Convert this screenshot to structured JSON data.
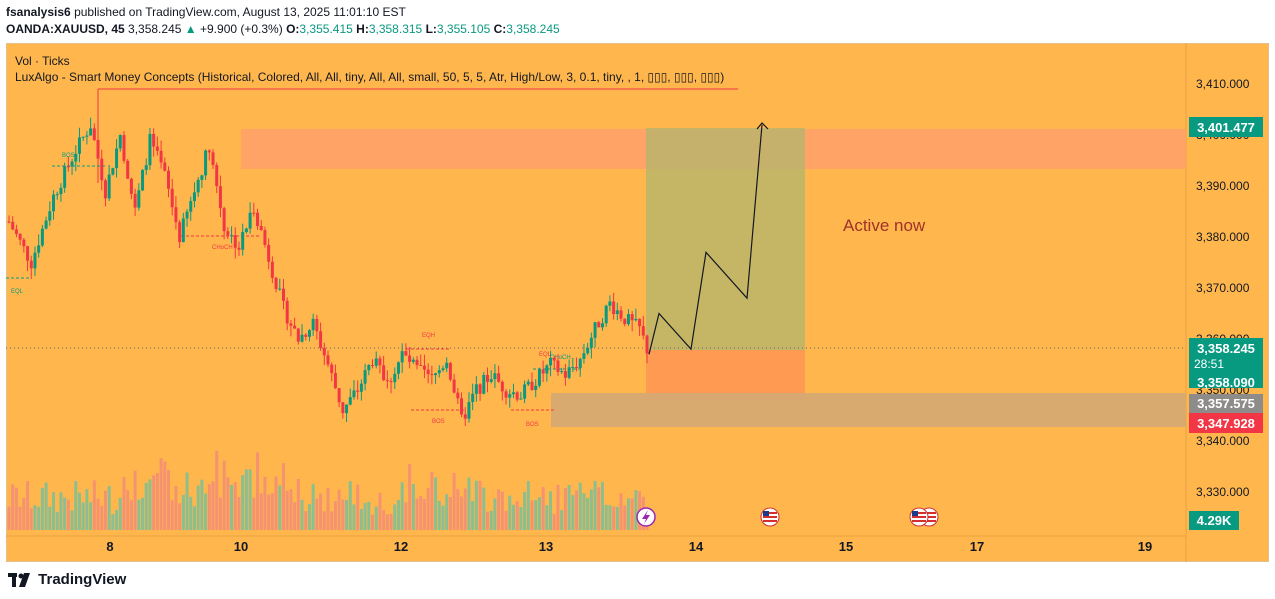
{
  "header": {
    "publisher": "fsanalysis6",
    "published_text": "published on TradingView.com, August 13, 2025 11:01:10 EST"
  },
  "symbol_bar": {
    "symbol": "OANDA:XAUUSD, 45",
    "last": "3,358.245",
    "change": "+9.900 (+0.3%)",
    "o_label": "O:",
    "o": "3,355.415",
    "h_label": "H:",
    "h": "3,358.315",
    "l_label": "L:",
    "l": "3,355.105",
    "c_label": "C:",
    "c": "3,358.245"
  },
  "indicators": {
    "vol": "Vol · Ticks",
    "luxalgo": "LuxAlgo - Smart Money Concepts (Historical, Colored, All, All, tiny, All, All, small, 50, 5, 5, Atr, High/Low, 3, 0.1, tiny, , 1, ▯▯▯, ▯▯▯, ▯▯▯)"
  },
  "annotation": "Active now",
  "smc_labels": [
    "BOS",
    "EQL",
    "CHoCH",
    "EQH",
    "BOS",
    "EQL",
    "CHoCH",
    "BOS"
  ],
  "price_badges": {
    "target": "3,401.477",
    "current": "3,358.245",
    "countdown": "28:51",
    "level_a": "3,358.090",
    "level_b": "3,357.575",
    "stop": "3,347.928",
    "volume": "4.29K"
  },
  "footer": {
    "brand": "TradingView"
  },
  "colors": {
    "background": "#ffb74d",
    "bull": "#089981",
    "bear": "#f23645",
    "target_zone": "#b2b56e",
    "stop_zone": "#ff9a52",
    "supply_zone": "#ffa06b",
    "demand_zone": "#d5a874"
  },
  "chart_data": {
    "type": "candlestick",
    "x_ticks": [
      "8",
      "10",
      "12",
      "13",
      "14",
      "15",
      "17",
      "19"
    ],
    "y_ticks": [
      "3,330.000",
      "3,340.000",
      "3,350.000",
      "3,360.000",
      "3,370.000",
      "3,380.000",
      "3,390.000",
      "3,400.000",
      "3,410.000"
    ],
    "ylim": [
      3320,
      3415
    ],
    "ohlc_reference": {
      "open": 3355.415,
      "high": 3358.315,
      "low": 3355.105,
      "close": 3358.245
    },
    "projection_path": [
      3357,
      3365,
      3358,
      3377,
      3368,
      3402
    ]
  }
}
